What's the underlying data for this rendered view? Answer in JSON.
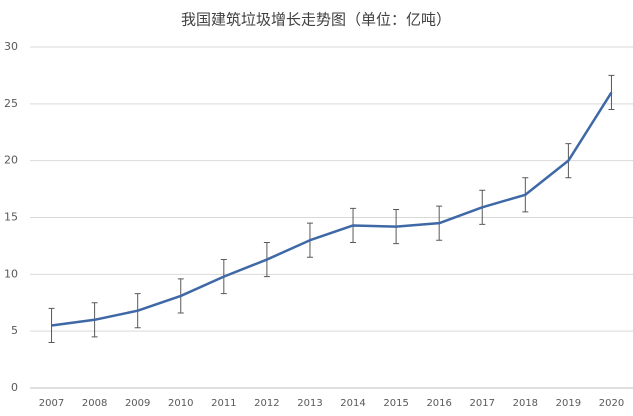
{
  "chart_data": {
    "type": "line",
    "title": "我国建筑垃圾增长走势图（单位：亿吨）",
    "categories": [
      "2007",
      "2008",
      "2009",
      "2010",
      "2011",
      "2012",
      "2013",
      "2014",
      "2015",
      "2016",
      "2017",
      "2018",
      "2019",
      "2020"
    ],
    "series": [
      {
        "color": "#3f68a6",
        "values": [
          5.5,
          6.0,
          6.8,
          8.1,
          9.8,
          11.3,
          13.0,
          14.3,
          14.2,
          14.5,
          15.9,
          17.0,
          20.0,
          26.0
        ],
        "errors": [
          1.5,
          1.5,
          1.5,
          1.5,
          1.5,
          1.5,
          1.5,
          1.5,
          1.5,
          1.5,
          1.5,
          1.5,
          1.5,
          1.5
        ]
      }
    ],
    "ylim": [
      0,
      30
    ],
    "yticks": [
      0,
      5,
      10,
      15,
      20,
      25,
      30
    ],
    "grid": true
  }
}
